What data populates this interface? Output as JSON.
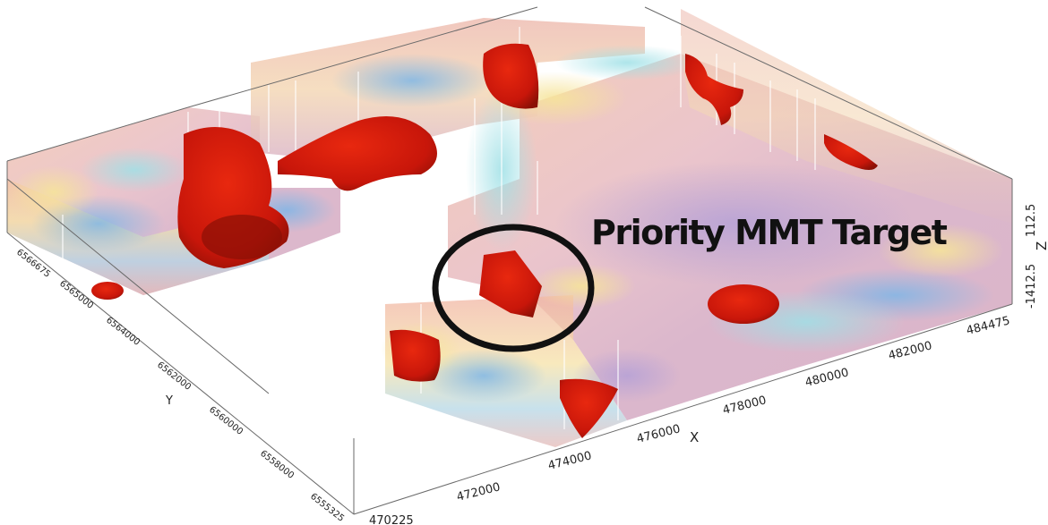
{
  "annotation": {
    "label": "Priority MMT Target"
  },
  "axes": {
    "x": {
      "label": "X",
      "ticks": [
        "472000",
        "474000",
        "476000",
        "478000",
        "480000",
        "482000",
        "484475"
      ],
      "start_label": "470225"
    },
    "y": {
      "label": "Y",
      "ticks": [
        "6566675",
        "6565000",
        "6564000",
        "6562000",
        "6560000",
        "6558000",
        "6555325"
      ]
    },
    "z": {
      "label": "Z",
      "ticks": [
        "112.5",
        "-1412.5"
      ]
    }
  },
  "colors": {
    "anomaly": "#d41d0b",
    "anomaly_dark": "#8a1006",
    "target_ring": "#111111",
    "box_lines": "#6a6a6a"
  }
}
